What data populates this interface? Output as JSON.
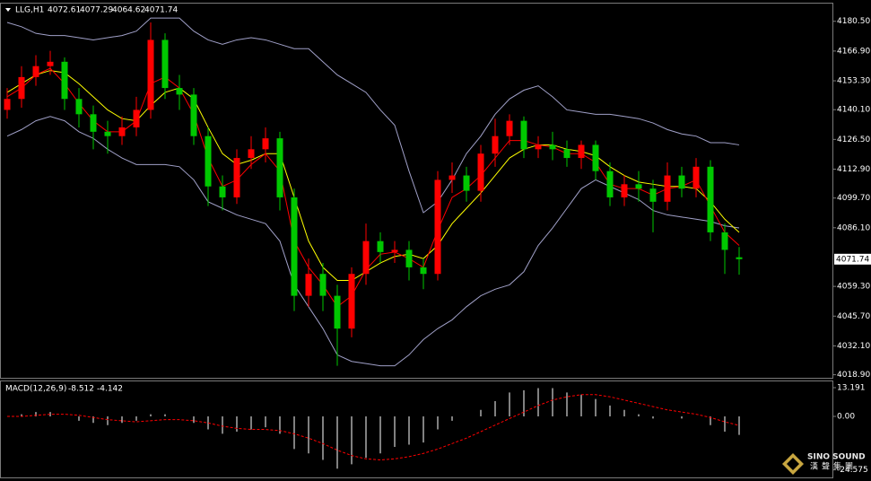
{
  "chart_data": [
    {
      "type": "candlestick",
      "title": "LLG,H1",
      "up_color": "#ff0000",
      "down_color": "#00c800",
      "open": [
        4140,
        4145,
        4155,
        4160,
        4162,
        4145,
        4138,
        4130,
        4128,
        4132,
        4140,
        4172,
        4150,
        4147,
        4128,
        4105,
        4100,
        4118,
        4122,
        4127,
        4100,
        4055,
        4065,
        4055,
        4040,
        4065,
        4080,
        4075,
        4076,
        4068,
        4065,
        4108,
        4110,
        4103,
        4120,
        4128,
        4135,
        4122,
        4124,
        4122,
        4118,
        4124,
        4112,
        4100,
        4106,
        4104,
        4098,
        4110,
        4104,
        4114,
        4084,
        4072.61
      ],
      "high": [
        4150,
        4160,
        4165,
        4167,
        4164,
        4150,
        4142,
        4135,
        4137,
        4146,
        4180,
        4175,
        4156,
        4150,
        4132,
        4110,
        4122,
        4128,
        4132,
        4130,
        4104,
        4072,
        4070,
        4060,
        4068,
        4088,
        4084,
        4080,
        4080,
        4072,
        4112,
        4116,
        4114,
        4124,
        4136,
        4138,
        4137,
        4128,
        4130,
        4126,
        4126,
        4126,
        4116,
        4110,
        4112,
        4108,
        4116,
        4114,
        4118,
        4117,
        4088,
        4077.29
      ],
      "low": [
        4136,
        4141,
        4151,
        4156,
        4140,
        4132,
        4122,
        4120,
        4124,
        4128,
        4136,
        4145,
        4140,
        4124,
        4096,
        4094,
        4097,
        4113,
        4116,
        4094,
        4048,
        4050,
        4048,
        4023,
        4036,
        4060,
        4070,
        4070,
        4062,
        4058,
        4062,
        4102,
        4098,
        4098,
        4114,
        4124,
        4118,
        4118,
        4117,
        4114,
        4113,
        4108,
        4096,
        4096,
        4098,
        4084,
        4094,
        4100,
        4100,
        4080,
        4065,
        4064.62
      ],
      "close": [
        4145,
        4155,
        4160,
        4162,
        4145,
        4138,
        4130,
        4128,
        4132,
        4140,
        4172,
        4150,
        4147,
        4128,
        4105,
        4100,
        4118,
        4122,
        4127,
        4100,
        4055,
        4065,
        4055,
        4040,
        4065,
        4080,
        4075,
        4076,
        4068,
        4065,
        4108,
        4110,
        4103,
        4120,
        4128,
        4135,
        4122,
        4124,
        4122,
        4118,
        4124,
        4112,
        4100,
        4106,
        4104,
        4098,
        4110,
        4104,
        4114,
        4084,
        4076,
        4071.74
      ],
      "lines": [
        {
          "color": "#a0a0c8",
          "values": [
            4180,
            4178,
            4175,
            4174,
            4174,
            4173,
            4172,
            4173,
            4174,
            4176,
            4182,
            4182,
            4182,
            4176,
            4172,
            4170,
            4172,
            4173,
            4172,
            4170,
            4168,
            4168,
            4162,
            4156,
            4152,
            4148,
            4140,
            4133,
            4112,
            4093,
            4098,
            4108,
            4120,
            4128,
            4138,
            4145,
            4149,
            4151,
            4146,
            4140,
            4139,
            4138,
            4138,
            4137,
            4136,
            4134,
            4131,
            4129,
            4128,
            4125,
            4125,
            4124
          ]
        },
        {
          "color": "#a0a0c8",
          "values": [
            4128,
            4131,
            4135,
            4137,
            4135,
            4130,
            4127,
            4122,
            4118,
            4115,
            4115,
            4115,
            4114,
            4108,
            4098,
            4095,
            4092,
            4090,
            4088,
            4080,
            4060,
            4050,
            4040,
            4028,
            4025,
            4024,
            4023,
            4023,
            4028,
            4035,
            4040,
            4044,
            4050,
            4055,
            4058,
            4060,
            4066,
            4078,
            4086,
            4095,
            4104,
            4108,
            4105,
            4102,
            4099,
            4094,
            4092,
            4091,
            4090,
            4089,
            4087,
            4086
          ]
        },
        {
          "color": "#ffff00",
          "values": [
            4148,
            4152,
            4156,
            4158,
            4157,
            4152,
            4146,
            4140,
            4136,
            4135,
            4142,
            4148,
            4150,
            4145,
            4132,
            4120,
            4115,
            4117,
            4120,
            4120,
            4100,
            4080,
            4068,
            4062,
            4062,
            4066,
            4070,
            4073,
            4074,
            4072,
            4078,
            4088,
            4095,
            4102,
            4110,
            4118,
            4122,
            4124,
            4124,
            4122,
            4121,
            4119,
            4114,
            4110,
            4107,
            4106,
            4105,
            4105,
            4104,
            4098,
            4090,
            4084
          ]
        },
        {
          "color": "#ff0000",
          "values": [
            4146,
            4150,
            4156,
            4159,
            4152,
            4143,
            4135,
            4130,
            4130,
            4135,
            4152,
            4155,
            4150,
            4138,
            4118,
            4105,
            4108,
            4115,
            4120,
            4112,
            4080,
            4068,
            4060,
            4050,
            4055,
            4067,
            4074,
            4075,
            4072,
            4068,
            4085,
            4100,
            4104,
            4110,
            4118,
            4126,
            4126,
            4124,
            4123,
            4120,
            4120,
            4116,
            4106,
            4104,
            4104,
            4101,
            4104,
            4105,
            4108,
            4096,
            4084,
            4078
          ]
        }
      ],
      "ylim": [
        4017.5,
        4188.6
      ],
      "yticks": [
        {
          "value": 4180.5,
          "label": "4180.50"
        },
        {
          "value": 4166.9,
          "label": "4166.90"
        },
        {
          "value": 4153.3,
          "label": "4153.30"
        },
        {
          "value": 4140.1,
          "label": "4140.10"
        },
        {
          "value": 4126.5,
          "label": "4126.50"
        },
        {
          "value": 4112.9,
          "label": "4112.90"
        },
        {
          "value": 4099.7,
          "label": "4099.70"
        },
        {
          "value": 4086.1,
          "label": "4086.10"
        },
        {
          "value": 4059.3,
          "label": "4059.30"
        },
        {
          "value": 4045.7,
          "label": "4045.70"
        },
        {
          "value": 4032.1,
          "label": "4032.10"
        },
        {
          "value": 4018.9,
          "label": "4018.90"
        }
      ]
    },
    {
      "type": "macd",
      "title": "MACD(12,26,9)",
      "histogram": {
        "color": "#ffffff",
        "values": [
          0,
          1,
          2,
          2,
          0,
          -2,
          -3,
          -4,
          -3,
          -2,
          1,
          1,
          0,
          -3,
          -6,
          -8,
          -7,
          -6,
          -5,
          -8,
          -15,
          -17,
          -20,
          -24,
          -22,
          -19,
          -17,
          -14,
          -13,
          -12,
          -6,
          -2,
          0,
          3,
          7,
          11,
          12,
          13,
          13,
          11,
          10,
          8,
          5,
          3,
          1,
          -1,
          0,
          -1,
          0,
          -4,
          -7,
          -8.512
        ]
      },
      "signal": {
        "color": "#ff0000",
        "values": [
          0,
          0,
          0.5,
          1,
          1,
          0.5,
          -0.5,
          -1.5,
          -2,
          -2.5,
          -2,
          -1.5,
          -1.5,
          -2,
          -3,
          -4.5,
          -5.5,
          -6,
          -6,
          -6.5,
          -8,
          -10,
          -12.5,
          -15.5,
          -18,
          -19.5,
          -20,
          -19.5,
          -18.5,
          -17,
          -15,
          -12.5,
          -10,
          -7,
          -4,
          -1,
          2,
          5,
          7.5,
          9,
          10,
          10,
          9,
          7.5,
          6,
          4.5,
          3,
          2,
          1,
          -0.5,
          -2.5,
          -4.142
        ]
      },
      "ylim": [
        -28.03,
        16.08
      ],
      "yticks": [
        13.191,
        {
          "value": 0,
          "label": "0.00"
        },
        -24.575
      ]
    }
  ],
  "watermark": {
    "brand": "SINO SOUND",
    "subtitle": "漢聲集團"
  }
}
